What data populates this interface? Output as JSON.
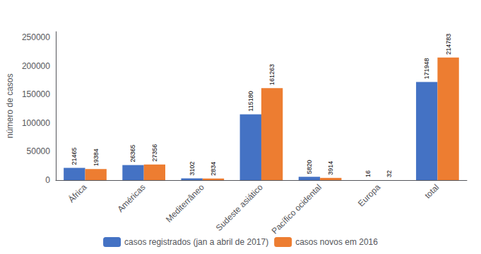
{
  "chart_data": {
    "type": "bar",
    "categories": [
      "África",
      "Américas",
      "Mediterrâneo",
      "Sudeste asiático",
      "Pacífico ocidental",
      "Europa",
      "total"
    ],
    "series": [
      {
        "name": "casos registrados (jan a abril de 2017)",
        "color": "#4472C4",
        "values": [
          21465,
          26365,
          3102,
          115180,
          5820,
          16,
          171948
        ]
      },
      {
        "name": "casos novos em 2016",
        "color": "#ED7D31",
        "values": [
          19384,
          27356,
          2834,
          161263,
          3914,
          32,
          214783
        ]
      }
    ],
    "ylabel": "número de casos",
    "ylim": [
      0,
      260000
    ],
    "yticks": [
      0,
      50000,
      100000,
      150000,
      200000,
      250000
    ],
    "grid": false,
    "legend": "bottom",
    "data_labels": true
  }
}
